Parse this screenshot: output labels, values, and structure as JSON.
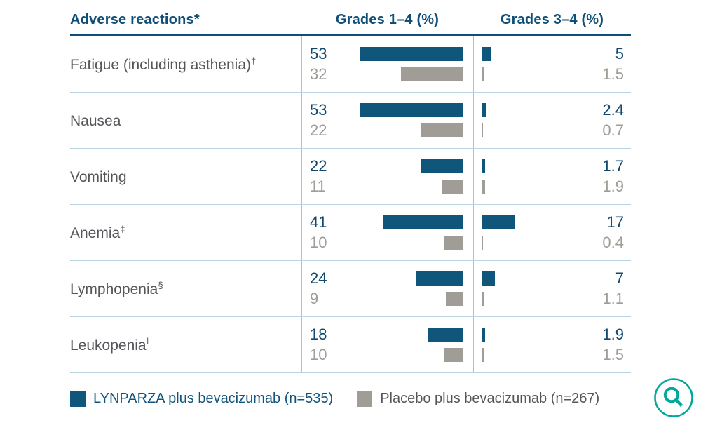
{
  "chart_data": {
    "type": "bar",
    "orientation": "horizontal",
    "label_header": "Adverse reactions*",
    "columns": [
      "Grades 1–4 (%)",
      "Grades 3–4 (%)"
    ],
    "series": [
      {
        "name": "LYNPARZA plus bevacizumab (n=535)",
        "color": "#0f567a"
      },
      {
        "name": "Placebo plus bevacizumab (n=267)",
        "color": "#a09d97"
      }
    ],
    "rows": [
      {
        "label": "Fatigue (including asthenia)",
        "sup": "†",
        "g14": [
          "53",
          "32"
        ],
        "g34": [
          "5",
          "1.5"
        ]
      },
      {
        "label": "Nausea",
        "sup": "",
        "g14": [
          "53",
          "22"
        ],
        "g34": [
          "2.4",
          "0.7"
        ]
      },
      {
        "label": "Vomiting",
        "sup": "",
        "g14": [
          "22",
          "11"
        ],
        "g34": [
          "1.7",
          "1.9"
        ]
      },
      {
        "label": "Anemia",
        "sup": "‡",
        "g14": [
          "41",
          "10"
        ],
        "g34": [
          "17",
          "0.4"
        ]
      },
      {
        "label": "Lymphopenia",
        "sup": "§",
        "g14": [
          "24",
          "9"
        ],
        "g34": [
          "7",
          "1.1"
        ]
      },
      {
        "label": "Leukopenia",
        "sup": "‖",
        "g14": [
          "18",
          "10"
        ],
        "g34": [
          "1.9",
          "1.5"
        ]
      }
    ],
    "value_unit": "%",
    "axis_range": [
      0,
      55
    ],
    "gridlines": false,
    "legend_position": "bottom"
  },
  "colors": {
    "header_blue": "#0f4e78",
    "bar_blue": "#0f567a",
    "bar_gray": "#a09d97",
    "divider_blue": "#9dc6d7",
    "row_line_blue": "#b7d4e0",
    "label_gray": "#54565a",
    "magnifier_teal": "#00a89b"
  },
  "icons": {
    "magnifier": "magnifying-glass"
  }
}
